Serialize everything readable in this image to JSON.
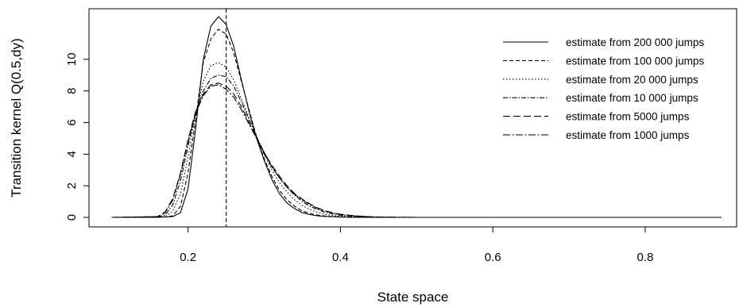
{
  "chart_data": {
    "type": "line",
    "title": "",
    "xlabel": "State space",
    "ylabel": "Transition kernel Q(0.5,dy)",
    "xlim": [
      0.07,
      0.92
    ],
    "ylim": [
      -0.6,
      13.2
    ],
    "x_ticks": [
      0.2,
      0.4,
      0.6,
      0.8
    ],
    "x_tick_labels": [
      "0.2",
      "0.4",
      "0.6",
      "0.8"
    ],
    "y_ticks": [
      0,
      2,
      4,
      6,
      8,
      10
    ],
    "y_tick_labels": [
      "0",
      "2",
      "4",
      "6",
      "8",
      "10"
    ],
    "grid": false,
    "legend_position": "top-right",
    "vline": 0.25,
    "x": [
      0.1,
      0.16,
      0.17,
      0.18,
      0.19,
      0.2,
      0.21,
      0.22,
      0.23,
      0.24,
      0.25,
      0.26,
      0.27,
      0.28,
      0.29,
      0.3,
      0.31,
      0.32,
      0.33,
      0.34,
      0.35,
      0.36,
      0.37,
      0.38,
      0.39,
      0.4,
      0.42,
      0.44,
      0.46,
      0.5,
      0.9
    ],
    "series": [
      {
        "name": "estimate from 200 000 jumps",
        "dash": "",
        "values": [
          0,
          0,
          0.02,
          0.05,
          0.3,
          1.8,
          5.6,
          10.0,
          12.1,
          12.7,
          12.2,
          10.8,
          8.7,
          6.7,
          5.0,
          3.6,
          2.4,
          1.5,
          0.9,
          0.55,
          0.3,
          0.18,
          0.1,
          0.06,
          0.04,
          0.02,
          0,
          0,
          0,
          0,
          0
        ]
      },
      {
        "name": "estimate from 100 000 jumps",
        "dash": "5,3",
        "values": [
          0,
          0,
          0.03,
          0.1,
          0.7,
          2.8,
          6.2,
          9.8,
          11.3,
          11.9,
          11.6,
          10.4,
          8.6,
          6.8,
          5.1,
          3.7,
          2.6,
          1.7,
          1.1,
          0.7,
          0.4,
          0.25,
          0.15,
          0.09,
          0.05,
          0.03,
          0.01,
          0,
          0,
          0,
          0
        ]
      },
      {
        "name": "estimate from 20 000 jumps",
        "dash": "1.5,2.5",
        "values": [
          0,
          0,
          0.05,
          0.4,
          1.5,
          3.8,
          6.5,
          8.6,
          9.6,
          9.8,
          9.5,
          8.7,
          7.5,
          6.3,
          5.1,
          4.0,
          3.0,
          2.2,
          1.6,
          1.1,
          0.75,
          0.5,
          0.32,
          0.2,
          0.12,
          0.08,
          0.03,
          0.01,
          0,
          0,
          0
        ]
      },
      {
        "name": "estimate from 10 000 jumps",
        "dash": "6,2,1.5,2",
        "values": [
          0,
          0.02,
          0.15,
          0.8,
          2.3,
          4.5,
          6.6,
          8.0,
          8.8,
          9.0,
          8.9,
          8.3,
          7.3,
          6.2,
          5.1,
          4.1,
          3.2,
          2.5,
          1.9,
          1.4,
          1.0,
          0.7,
          0.5,
          0.33,
          0.22,
          0.14,
          0.06,
          0.02,
          0.01,
          0,
          0
        ]
      },
      {
        "name": "estimate from 5000 jumps",
        "dash": "9,4",
        "values": [
          0,
          0.05,
          0.35,
          1.2,
          2.8,
          4.9,
          6.7,
          7.8,
          8.4,
          8.5,
          8.3,
          7.8,
          7.0,
          6.0,
          5.0,
          4.1,
          3.3,
          2.6,
          2.0,
          1.5,
          1.15,
          0.85,
          0.6,
          0.42,
          0.3,
          0.2,
          0.1,
          0.04,
          0.01,
          0,
          0
        ]
      },
      {
        "name": "estimate from 1000 jumps",
        "dash": "9,2.5,2,2.5",
        "values": [
          0,
          0.04,
          0.3,
          1.1,
          2.7,
          4.8,
          6.6,
          7.7,
          8.3,
          8.4,
          8.1,
          7.6,
          6.8,
          5.9,
          5.0,
          4.0,
          3.2,
          2.5,
          1.9,
          1.45,
          1.1,
          0.8,
          0.57,
          0.4,
          0.28,
          0.19,
          0.09,
          0.04,
          0.01,
          0,
          0
        ]
      }
    ]
  }
}
